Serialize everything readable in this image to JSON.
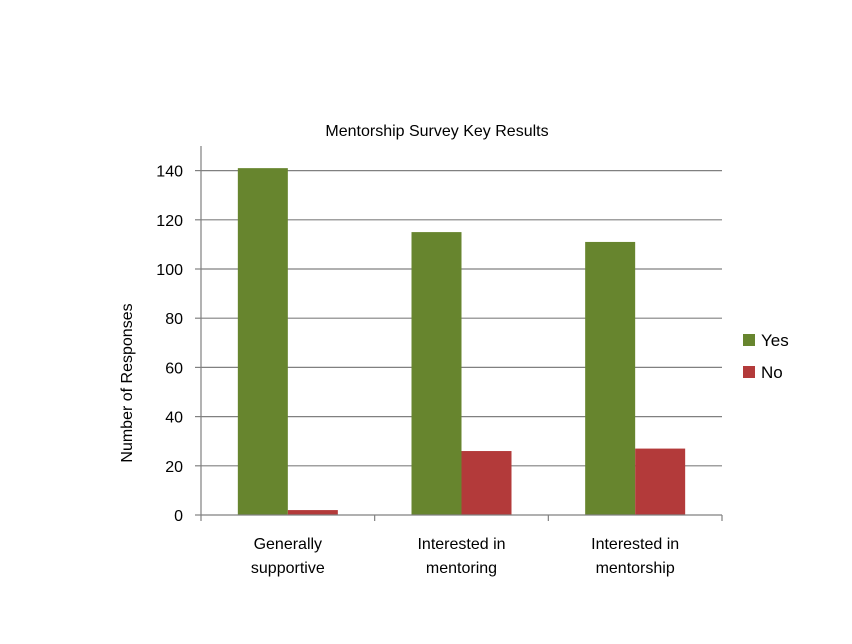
{
  "chart_data": {
    "type": "bar",
    "title": "Mentorship Survey Key Results",
    "xlabel": "",
    "ylabel": "Number of Responses",
    "categories": [
      [
        "Generally",
        "supportive"
      ],
      [
        "Interested in",
        "mentoring"
      ],
      [
        "Interested in",
        "mentorship"
      ]
    ],
    "series": [
      {
        "name": "Yes",
        "color": "#67852e",
        "values": [
          141,
          115,
          111
        ]
      },
      {
        "name": "No",
        "color": "#b33a3a",
        "values": [
          2,
          26,
          27
        ]
      }
    ],
    "ylim": [
      0,
      140
    ],
    "yticks": [
      0,
      20,
      40,
      60,
      80,
      100,
      120,
      140
    ],
    "grid": true,
    "legend_position": "right"
  }
}
